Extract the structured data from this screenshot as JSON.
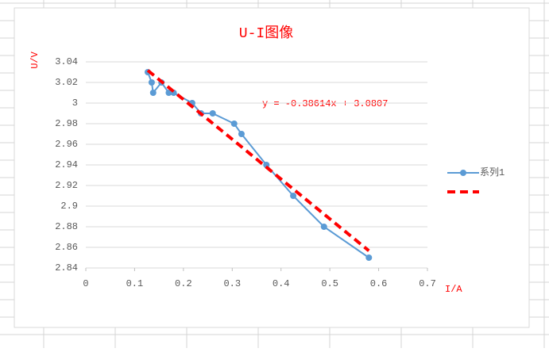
{
  "chart_data": {
    "type": "line",
    "title": "U-I图像",
    "xlabel": "I/A",
    "ylabel": "U/V",
    "annotation": "y = -0.38614x + 3.0807",
    "xlim": [
      0,
      0.7
    ],
    "xticks": [
      0,
      0.1,
      0.2,
      0.3,
      0.4,
      0.5,
      0.6,
      0.7
    ],
    "ylim": [
      2.84,
      3.04
    ],
    "yticks": [
      2.84,
      2.86,
      2.88,
      2.9,
      2.92,
      2.94,
      2.96,
      2.98,
      3,
      3.02,
      3.04
    ],
    "grid": true,
    "legend": "right",
    "series": [
      {
        "name": "系列1",
        "color": "#5b9bd5",
        "style": "solid",
        "markers": true,
        "x": [
          0.127,
          0.135,
          0.138,
          0.155,
          0.17,
          0.18,
          0.218,
          0.236,
          0.26,
          0.304,
          0.319,
          0.37,
          0.425,
          0.488,
          0.58
        ],
        "values": [
          3.03,
          3.02,
          3.01,
          3.02,
          3.01,
          3.01,
          3.0,
          2.99,
          2.99,
          2.98,
          2.97,
          2.94,
          2.91,
          2.88,
          2.85
        ]
      },
      {
        "color": "#ff0000",
        "style": "dashed",
        "markers": false,
        "x": [
          0.127,
          0.58
        ],
        "values": [
          3.0317,
          2.8567
        ]
      }
    ]
  }
}
